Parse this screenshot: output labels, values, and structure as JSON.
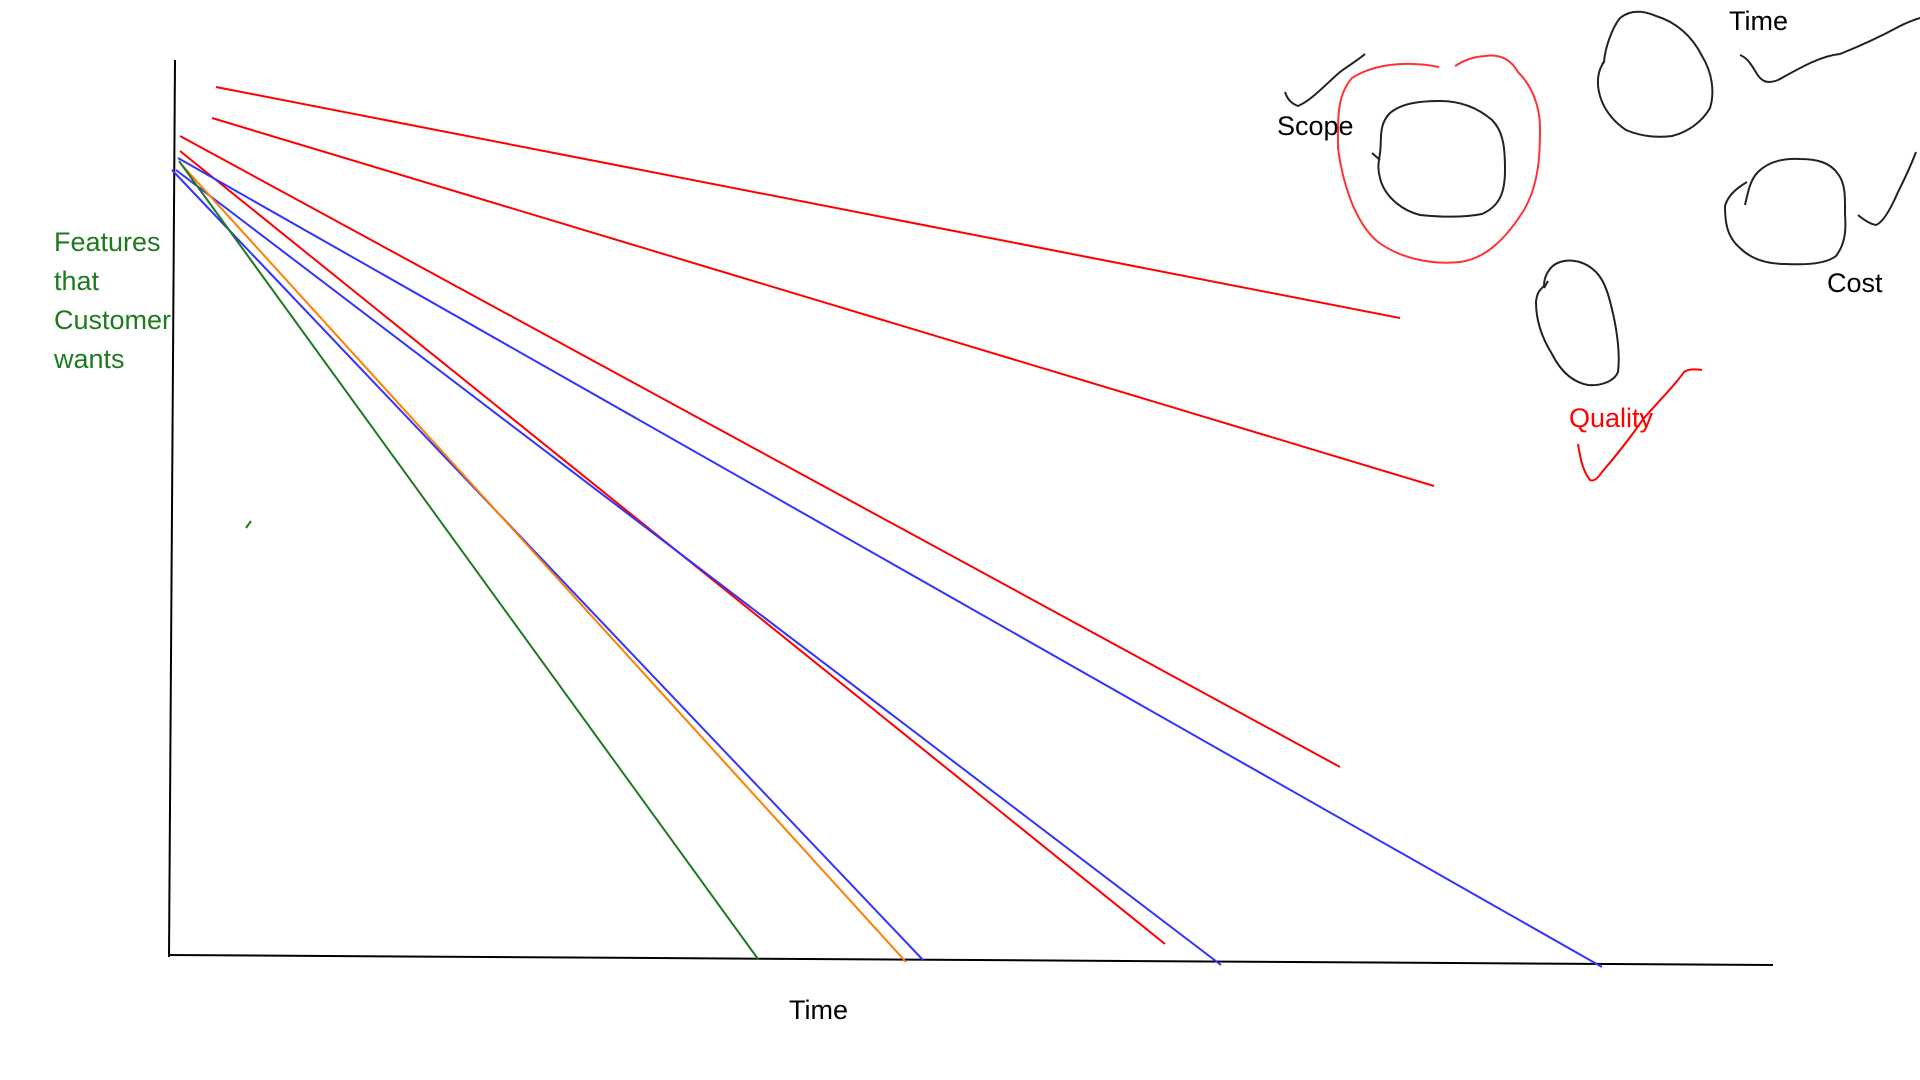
{
  "axes": {
    "y_label_lines": [
      "Features",
      "that",
      "Customer",
      "wants"
    ],
    "x_label": "Time"
  },
  "constraints": {
    "scope": "Scope",
    "time": "Time",
    "cost": "Cost",
    "quality": "Quality"
  },
  "colors": {
    "axis": "#000000",
    "red_line": "#ff0000",
    "blue_line": "#3333ff",
    "green_line": "#1f7a1f",
    "orange_line": "#ff7f00",
    "label_green": "#1f7a1f",
    "label_red": "#ff0000"
  }
}
